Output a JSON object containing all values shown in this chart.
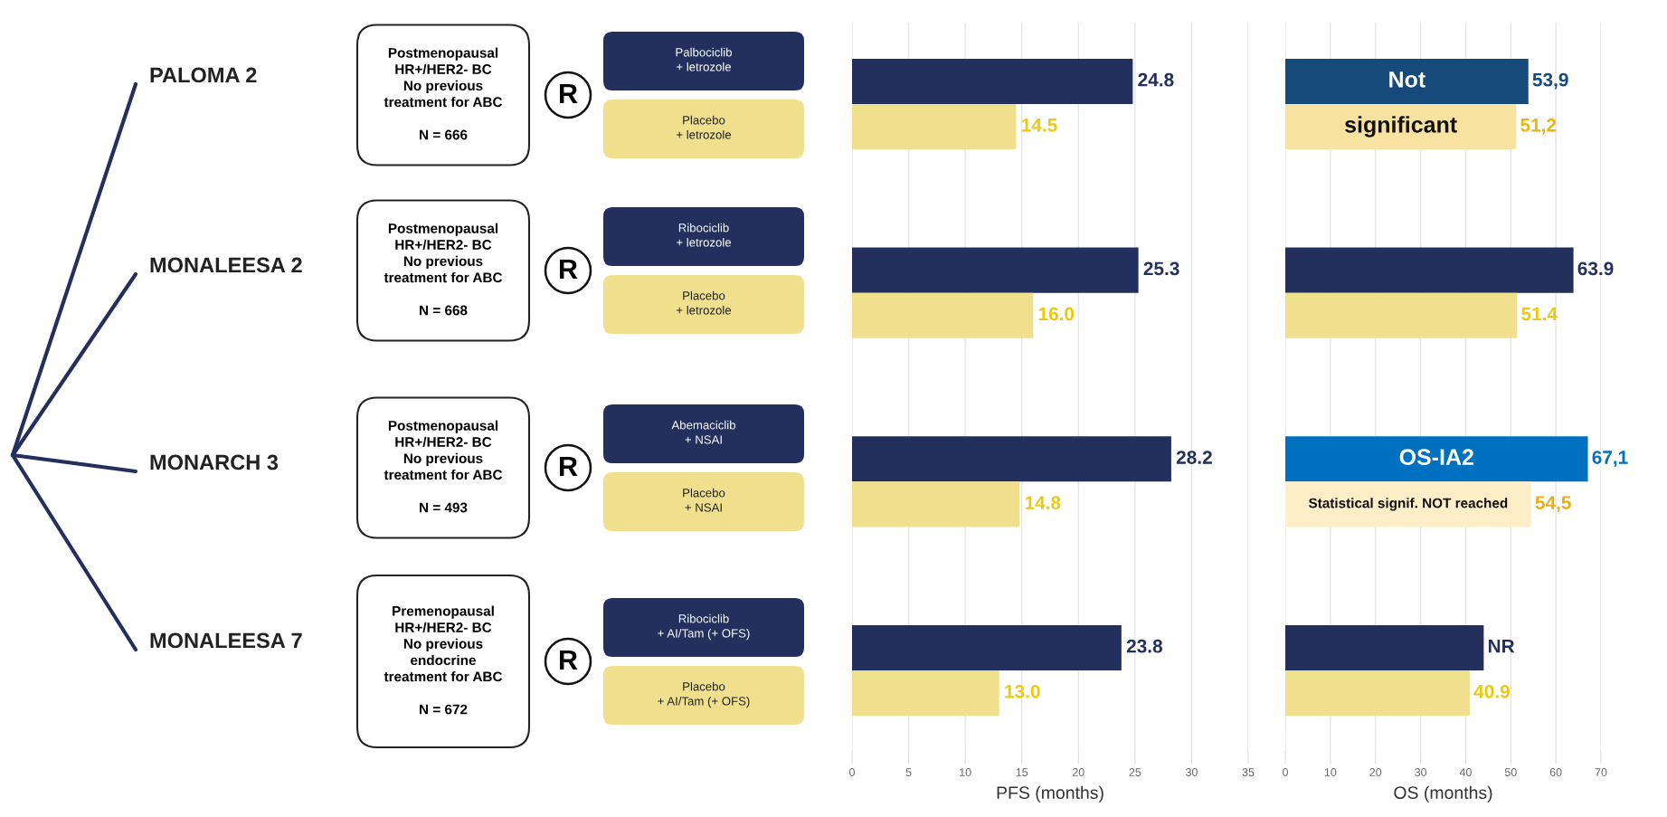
{
  "chart_data": [
    {
      "type": "other",
      "annotations": [
        "PALOMA 2",
        "Postmenopausal\nHR+/HER2- BC\nNo previous\ntreatment for ABC\n\nN = 666",
        "R",
        "Palbociclib\n+ letrozole",
        "Placebo\n+ letrozole",
        "MONALEESA 2",
        "Postmenopausal\nHR+/HER2- BC\nNo previous\ntreatment for ABC\n\nN = 668",
        "R",
        "Ribociclib\n+ letrozole",
        "Placebo\n+ letrozole",
        "MONARCH 3",
        "Postmenopausal\nHR+/HER2- BC\nNo previous\ntreatment for ABC\n\nN = 493",
        "R",
        "Abemaciclib\n+ NSAI",
        "Placebo\n+ NSAI",
        "MONALEESA 7",
        "Premenopausal\nHR+/HER2- BC\nNo previous\nendocrine\ntreatment for ABC\n\nN = 672",
        "R",
        "Ribociclib\n+ AI/Tam (+ OFS)",
        "Placebo\n+ AI/Tam (+ OFS)"
      ]
    },
    {
      "type": "bar",
      "orientation": "horizontal",
      "xlabel": "PFS (months)",
      "categories": [
        null,
        null,
        null,
        null
      ],
      "series": [
        {
          "color": "#23305e",
          "values": [
            24.8,
            25.3,
            28.2,
            23.8
          ],
          "value_labels": [
            "24.8",
            "25.3",
            "28.2",
            "23.8"
          ]
        },
        {
          "color": "#f0e08e",
          "values": [
            14.5,
            16.0,
            14.8,
            13.0
          ],
          "value_labels": [
            "14.5",
            "16.0",
            "14.8",
            "13.0"
          ]
        }
      ],
      "xlim": [
        0,
        35
      ],
      "xticks": [
        0,
        5,
        10,
        15,
        20,
        25,
        30,
        35
      ],
      "grid": "x"
    },
    {
      "type": "bar",
      "orientation": "horizontal",
      "xlabel": "OS (months)",
      "categories": [
        null,
        null,
        null,
        null
      ],
      "series": [
        {
          "colors": [
            "#154a7a",
            "#23305e",
            "#0070c0",
            "#23305e"
          ],
          "values": [
            53.9,
            63.9,
            67.1,
            44
          ],
          "value_labels": [
            "53,9",
            "63.9",
            "67,1",
            "NR"
          ]
        },
        {
          "colors": [
            "#f8e2a0",
            "#f0e08e",
            "#fdeec8",
            "#f0e08e"
          ],
          "values": [
            51.2,
            51.4,
            54.5,
            40.9
          ],
          "value_labels": [
            "51,2",
            "51.4",
            "54,5",
            "40.9"
          ]
        }
      ],
      "xlim": [
        0,
        70
      ],
      "xticks": [
        0,
        10,
        20,
        30,
        40,
        50,
        60,
        70
      ],
      "grid": "x",
      "annotations": [
        "Not",
        "significant",
        "OS-IA2",
        "Statistical signif. NOT reached"
      ]
    }
  ]
}
